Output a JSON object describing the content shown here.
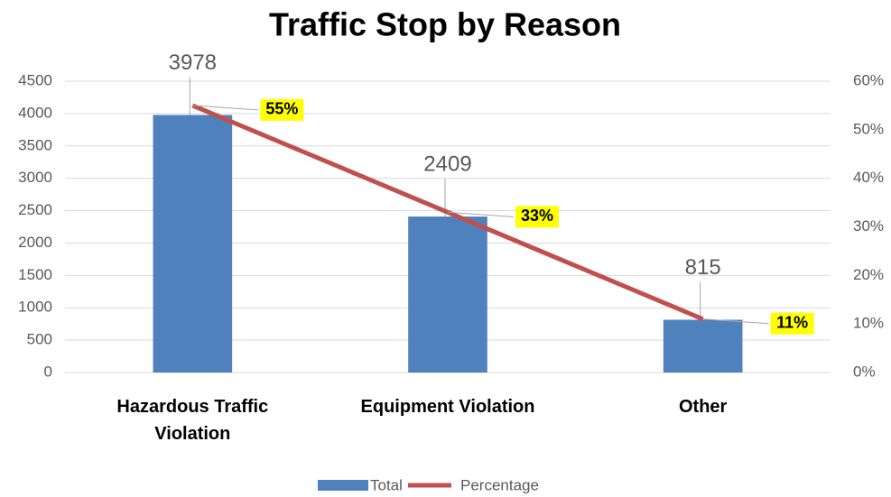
{
  "chart_data": {
    "type": "bar_line",
    "title": "Traffic Stop by Reason",
    "categories": [
      "Hazardous Traffic Violation",
      "Equipment Violation",
      "Other"
    ],
    "series": [
      {
        "name": "Total",
        "color": "#4f81bd",
        "values": [
          3978,
          2409,
          815
        ]
      },
      {
        "name": "Percentage",
        "color": "#c0504d",
        "axis": "y2",
        "values": [
          55,
          33,
          11
        ],
        "value_labels": [
          "55%",
          "33%",
          "11%"
        ]
      }
    ],
    "ylim": [
      0,
      4500
    ],
    "yticks": [
      0,
      500,
      1000,
      1500,
      2000,
      2500,
      3000,
      3500,
      4000,
      4500
    ],
    "y2lim": [
      0,
      60
    ],
    "y2ticks": [
      {
        "value": 0,
        "label": "0%"
      },
      {
        "value": 10,
        "label": "10%"
      },
      {
        "value": 20,
        "label": "20%"
      },
      {
        "value": 30,
        "label": "30%"
      },
      {
        "value": 40,
        "label": "40%"
      },
      {
        "value": 50,
        "label": "50%"
      },
      {
        "value": 60,
        "label": "60%"
      }
    ],
    "grid": true,
    "legend": "bottom"
  }
}
